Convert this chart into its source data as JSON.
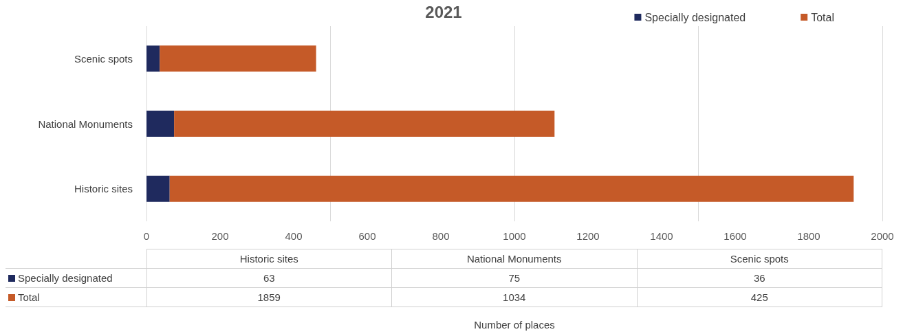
{
  "chart_data": [
    {
      "type": "bar",
      "orientation": "horizontal",
      "stacked": true,
      "title": "2021",
      "categories": [
        "Scenic spots",
        "National Monuments",
        "Historic sites"
      ],
      "series": [
        {
          "name": "Specially designated",
          "color": "#1f2a5e",
          "values": [
            36,
            75,
            63
          ]
        },
        {
          "name": "Total",
          "color": "#c55a28",
          "values": [
            425,
            1034,
            1859
          ]
        }
      ],
      "xlim": [
        0,
        2000
      ],
      "xticks": [
        0,
        200,
        400,
        600,
        800,
        1000,
        1200,
        1400,
        1600,
        1800,
        2000
      ],
      "grid": "x",
      "legend": "top right"
    },
    {
      "type": "other",
      "categories": [
        "Historic sites",
        "National Monuments",
        "Scenic spots"
      ],
      "series": [
        {
          "name": "Specially designated",
          "color": "#1f2a5e",
          "values": [
            63,
            75,
            36
          ]
        },
        {
          "name": "Total",
          "color": "#c55a28",
          "values": [
            1859,
            1034,
            425
          ]
        }
      ],
      "data_labels": true,
      "annotations": [
        "Number of places"
      ]
    }
  ]
}
